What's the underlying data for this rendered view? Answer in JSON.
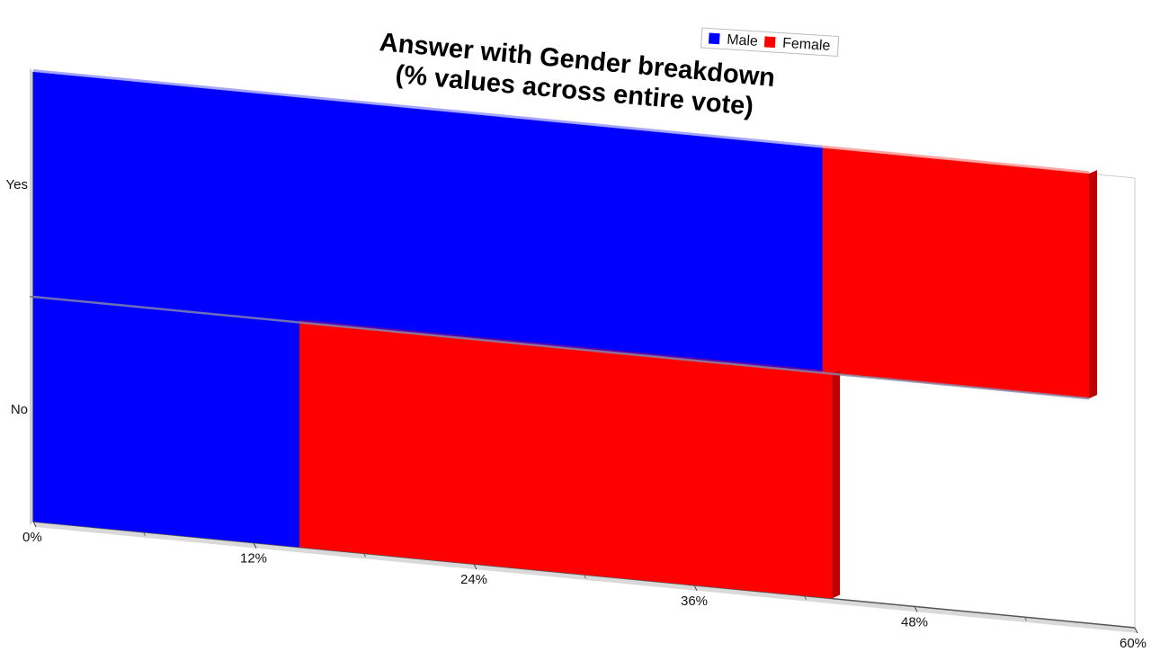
{
  "chart_data": {
    "type": "bar",
    "orientation": "horizontal",
    "stacked": true,
    "title": "Answer with Gender breakdown\n(% values across entire vote)",
    "title_lines": [
      "Answer with Gender breakdown",
      "(% values across entire vote)"
    ],
    "categories": [
      "Yes",
      "No"
    ],
    "series": [
      {
        "name": "Male",
        "color": "#0000ff",
        "values": [
          43,
          14.5
        ]
      },
      {
        "name": "Female",
        "color": "#ff0000",
        "values": [
          14.5,
          29
        ]
      }
    ],
    "xlim": [
      0,
      60
    ],
    "x_ticks": [
      0,
      12,
      24,
      36,
      48,
      60
    ],
    "x_tick_labels": [
      "0%",
      "12%",
      "24%",
      "36%",
      "48%",
      "60%"
    ],
    "xlabel": "",
    "ylabel": "",
    "legend": {
      "position": "top-right",
      "items": [
        "Male",
        "Female"
      ]
    },
    "grid": false,
    "style": "3d-perspective"
  }
}
